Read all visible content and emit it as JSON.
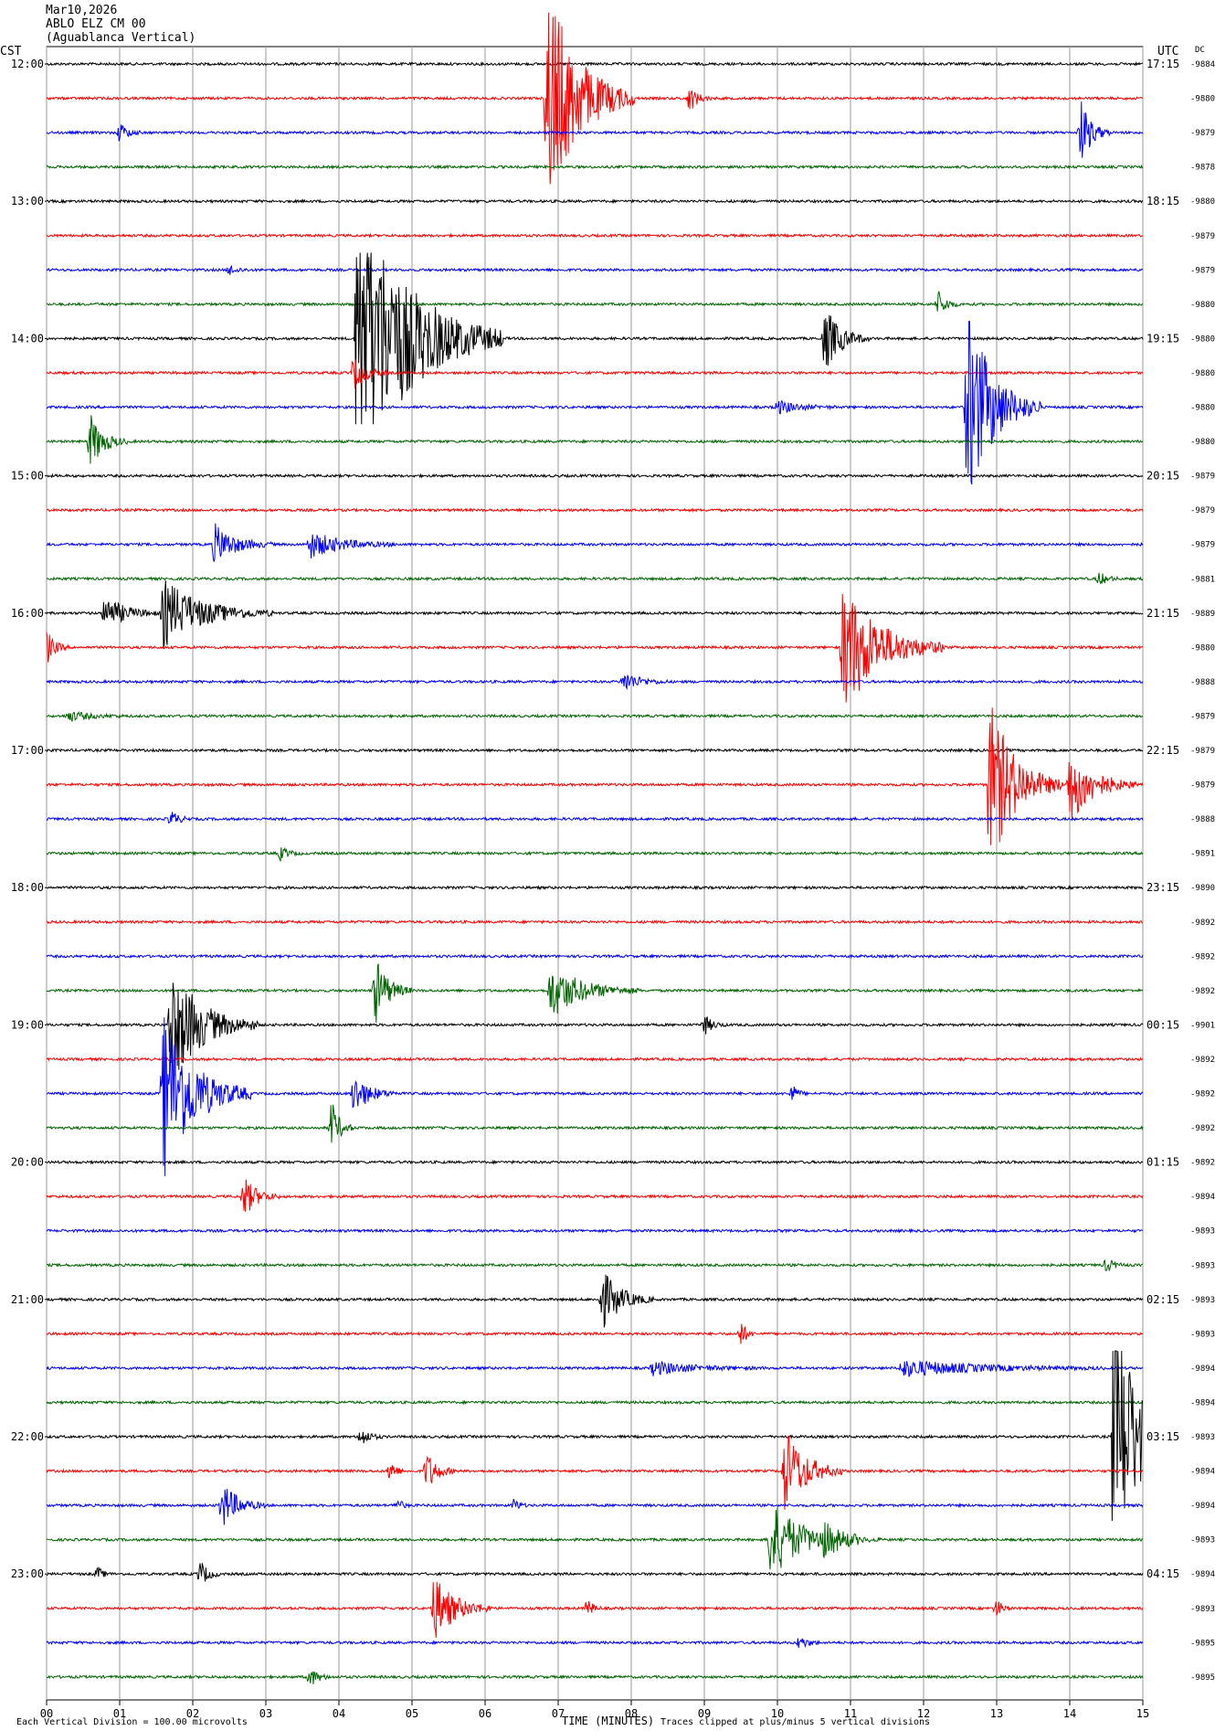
{
  "header": {
    "date": "Mar10,2026",
    "station": "ABLO ELZ CM 00",
    "location": "(Aguablanca Vertical)"
  },
  "axes": {
    "left_label": "CST",
    "right_label": "UTC",
    "dc_label": "DC",
    "xlabel": "TIME (MINUTES)"
  },
  "footer": {
    "scale_note": "Each Vertical Division =  100.00 microvolts",
    "clip_note": "Traces clipped at plus/minus 5 vertical divisions"
  },
  "colors": {
    "trace_cycle": [
      "#000000",
      "#ff0000",
      "#0000ff",
      "#006400"
    ],
    "grid": "#9a9a9a"
  },
  "chart_data": {
    "type": "helicorder",
    "minutes_per_line": 15,
    "x_ticks": [
      "00",
      "01",
      "02",
      "03",
      "04",
      "05",
      "06",
      "07",
      "08",
      "09",
      "10",
      "11",
      "12",
      "13",
      "14",
      "15"
    ],
    "hour_labels_left": [
      "12:00",
      "13:00",
      "14:00",
      "15:00",
      "16:00",
      "17:00",
      "18:00",
      "19:00",
      "20:00",
      "21:00",
      "22:00",
      "23:00"
    ],
    "hour_labels_right": [
      "17:15",
      "18:15",
      "19:15",
      "20:15",
      "21:15",
      "22:15",
      "23:15",
      "00:15",
      "01:15",
      "02:15",
      "03:15",
      "04:15"
    ],
    "dc_offsets": [
      "-9884",
      "-9880",
      "-9879",
      "-9878",
      "-9880",
      "-9879",
      "-9879",
      "-9880",
      "-9880",
      "-9880",
      "-9880",
      "-9880",
      "-9879",
      "-9879",
      "-9879",
      "-9881",
      "-9889",
      "-9880",
      "-9888",
      "-9879",
      "-9879",
      "-9879",
      "-9888",
      "-9891",
      "-9890",
      "-9892",
      "-9892",
      "-9892",
      "-9901",
      "-9892",
      "-9892",
      "-9892",
      "-9892",
      "-9894",
      "-9893",
      "-9893",
      "-9893",
      "-9893",
      "-9894",
      "-9894",
      "-9893",
      "-9894",
      "-9894",
      "-9893",
      "-9894",
      "-9893",
      "-9895",
      "-9895"
    ],
    "events": [
      {
        "line": 1,
        "minute": 6.85,
        "amp": 3.5,
        "dur": 1.2
      },
      {
        "line": 1,
        "minute": 8.8,
        "amp": 0.4,
        "dur": 0.3
      },
      {
        "line": 2,
        "minute": 1.0,
        "amp": 0.3,
        "dur": 0.3
      },
      {
        "line": 2,
        "minute": 14.15,
        "amp": 1.0,
        "dur": 0.4
      },
      {
        "line": 6,
        "minute": 2.5,
        "amp": 0.15,
        "dur": 0.3
      },
      {
        "line": 7,
        "minute": 12.2,
        "amp": 0.4,
        "dur": 0.3
      },
      {
        "line": 8,
        "minute": 4.25,
        "amp": 4.5,
        "dur": 2.0
      },
      {
        "line": 8,
        "minute": 10.65,
        "amp": 1.0,
        "dur": 0.6
      },
      {
        "line": 9,
        "minute": 4.2,
        "amp": 0.5,
        "dur": 0.5
      },
      {
        "line": 10,
        "minute": 10.0,
        "amp": 0.2,
        "dur": 0.8
      },
      {
        "line": 10,
        "minute": 12.6,
        "amp": 3.0,
        "dur": 1.0
      },
      {
        "line": 11,
        "minute": 0.6,
        "amp": 0.8,
        "dur": 0.5
      },
      {
        "line": 14,
        "minute": 2.3,
        "amp": 0.6,
        "dur": 0.8
      },
      {
        "line": 14,
        "minute": 3.6,
        "amp": 0.4,
        "dur": 1.2
      },
      {
        "line": 15,
        "minute": 14.4,
        "amp": 0.2,
        "dur": 0.3
      },
      {
        "line": 16,
        "minute": 0.8,
        "amp": 0.5,
        "dur": 0.8
      },
      {
        "line": 16,
        "minute": 1.6,
        "amp": 1.0,
        "dur": 1.5
      },
      {
        "line": 17,
        "minute": 0.0,
        "amp": 0.5,
        "dur": 0.3
      },
      {
        "line": 17,
        "minute": 10.9,
        "amp": 2.0,
        "dur": 1.4
      },
      {
        "line": 18,
        "minute": 7.9,
        "amp": 0.3,
        "dur": 0.6
      },
      {
        "line": 19,
        "minute": 0.3,
        "amp": 0.15,
        "dur": 0.8
      },
      {
        "line": 21,
        "minute": 12.9,
        "amp": 2.5,
        "dur": 1.0
      },
      {
        "line": 21,
        "minute": 14.0,
        "amp": 1.2,
        "dur": 0.9
      },
      {
        "line": 22,
        "minute": 1.7,
        "amp": 0.25,
        "dur": 0.3
      },
      {
        "line": 23,
        "minute": 3.2,
        "amp": 0.2,
        "dur": 0.3
      },
      {
        "line": 27,
        "minute": 4.5,
        "amp": 1.0,
        "dur": 0.5
      },
      {
        "line": 27,
        "minute": 6.9,
        "amp": 0.8,
        "dur": 1.2
      },
      {
        "line": 28,
        "minute": 1.7,
        "amp": 1.8,
        "dur": 1.2
      },
      {
        "line": 28,
        "minute": 9.0,
        "amp": 0.3,
        "dur": 0.3
      },
      {
        "line": 30,
        "minute": 1.6,
        "amp": 2.5,
        "dur": 1.2
      },
      {
        "line": 30,
        "minute": 4.2,
        "amp": 0.6,
        "dur": 0.6
      },
      {
        "line": 30,
        "minute": 10.2,
        "amp": 0.3,
        "dur": 0.2
      },
      {
        "line": 31,
        "minute": 3.9,
        "amp": 0.8,
        "dur": 0.3
      },
      {
        "line": 33,
        "minute": 2.7,
        "amp": 0.6,
        "dur": 0.5
      },
      {
        "line": 35,
        "minute": 14.5,
        "amp": 0.2,
        "dur": 0.3
      },
      {
        "line": 36,
        "minute": 7.6,
        "amp": 0.9,
        "dur": 0.7
      },
      {
        "line": 37,
        "minute": 9.5,
        "amp": 0.4,
        "dur": 0.2
      },
      {
        "line": 38,
        "minute": 8.3,
        "amp": 0.2,
        "dur": 1.5
      },
      {
        "line": 38,
        "minute": 11.7,
        "amp": 0.25,
        "dur": 2.8
      },
      {
        "line": 40,
        "minute": 4.3,
        "amp": 0.3,
        "dur": 0.3
      },
      {
        "line": 40,
        "minute": 14.6,
        "amp": 4.5,
        "dur": 0.9
      },
      {
        "line": 41,
        "minute": 4.7,
        "amp": 0.4,
        "dur": 0.2
      },
      {
        "line": 41,
        "minute": 5.2,
        "amp": 0.6,
        "dur": 0.4
      },
      {
        "line": 41,
        "minute": 10.1,
        "amp": 1.3,
        "dur": 0.8
      },
      {
        "line": 42,
        "minute": 2.4,
        "amp": 0.7,
        "dur": 0.6
      },
      {
        "line": 42,
        "minute": 4.8,
        "amp": 0.2,
        "dur": 0.2
      },
      {
        "line": 42,
        "minute": 6.4,
        "amp": 0.2,
        "dur": 0.2
      },
      {
        "line": 43,
        "minute": 9.9,
        "amp": 1.2,
        "dur": 1.2
      },
      {
        "line": 43,
        "minute": 10.6,
        "amp": 0.4,
        "dur": 0.8
      },
      {
        "line": 44,
        "minute": 2.1,
        "amp": 0.4,
        "dur": 0.3
      },
      {
        "line": 44,
        "minute": 0.7,
        "amp": 0.2,
        "dur": 0.2
      },
      {
        "line": 45,
        "minute": 5.3,
        "amp": 1.0,
        "dur": 0.8
      },
      {
        "line": 45,
        "minute": 7.4,
        "amp": 0.3,
        "dur": 0.2
      },
      {
        "line": 45,
        "minute": 13.0,
        "amp": 0.3,
        "dur": 0.2
      },
      {
        "line": 46,
        "minute": 10.3,
        "amp": 0.2,
        "dur": 0.3
      },
      {
        "line": 47,
        "minute": 3.6,
        "amp": 0.3,
        "dur": 0.3
      }
    ]
  }
}
